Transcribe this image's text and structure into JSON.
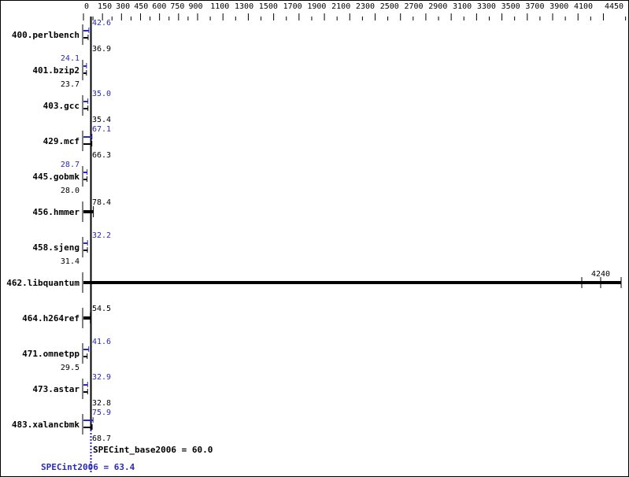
{
  "chart_data": {
    "type": "bar",
    "orientation": "horizontal",
    "x_ticks": [
      0,
      150,
      300,
      450,
      600,
      750,
      900,
      1100,
      1300,
      1500,
      1700,
      1900,
      2100,
      2300,
      2500,
      2700,
      2900,
      3100,
      3300,
      3500,
      3700,
      3900,
      4100,
      4450
    ],
    "xlim": [
      0,
      4450
    ],
    "categories": [
      "400.perlbench",
      "401.bzip2",
      "403.gcc",
      "429.mcf",
      "445.gobmk",
      "456.hmmer",
      "458.sjeng",
      "462.libquantum",
      "464.h264ref",
      "471.omnetpp",
      "473.astar",
      "483.xalancbmk"
    ],
    "series": [
      {
        "name": "SPECint2006",
        "color": "#2a2ab8",
        "values": [
          42.6,
          24.1,
          35.0,
          67.1,
          28.7,
          null,
          32.2,
          null,
          null,
          41.6,
          32.9,
          75.9
        ]
      },
      {
        "name": "SPECint_base2006",
        "color": "#000000",
        "values": [
          36.9,
          23.7,
          35.4,
          66.3,
          28.0,
          78.4,
          31.4,
          4240,
          54.5,
          29.5,
          32.8,
          68.7
        ]
      }
    ],
    "summary": {
      "base": "SPECint_base2006 = 60.0",
      "peak": "SPECint2006 = 63.4"
    }
  }
}
